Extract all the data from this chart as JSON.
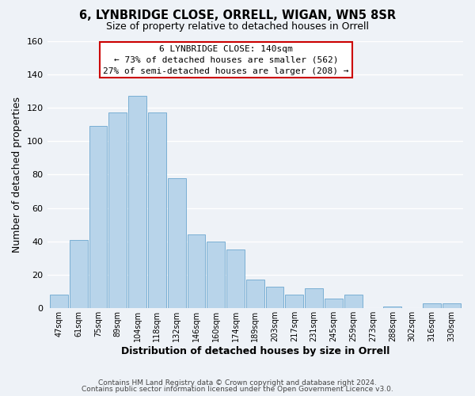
{
  "title": "6, LYNBRIDGE CLOSE, ORRELL, WIGAN, WN5 8SR",
  "subtitle": "Size of property relative to detached houses in Orrell",
  "xlabel": "Distribution of detached houses by size in Orrell",
  "ylabel": "Number of detached properties",
  "bar_labels": [
    "47sqm",
    "61sqm",
    "75sqm",
    "89sqm",
    "104sqm",
    "118sqm",
    "132sqm",
    "146sqm",
    "160sqm",
    "174sqm",
    "189sqm",
    "203sqm",
    "217sqm",
    "231sqm",
    "245sqm",
    "259sqm",
    "273sqm",
    "288sqm",
    "302sqm",
    "316sqm",
    "330sqm"
  ],
  "bar_values": [
    8,
    41,
    109,
    117,
    127,
    117,
    78,
    44,
    40,
    35,
    17,
    13,
    8,
    12,
    6,
    8,
    0,
    1,
    0,
    3,
    3
  ],
  "bar_color": "#b8d4ea",
  "bar_edge_color": "#7aafd4",
  "ylim": [
    0,
    160
  ],
  "yticks": [
    0,
    20,
    40,
    60,
    80,
    100,
    120,
    140,
    160
  ],
  "annotation_title": "6 LYNBRIDGE CLOSE: 140sqm",
  "annotation_line1": "← 73% of detached houses are smaller (562)",
  "annotation_line2": "27% of semi-detached houses are larger (208) →",
  "annotation_box_facecolor": "#ffffff",
  "annotation_box_edgecolor": "#cc0000",
  "footer1": "Contains HM Land Registry data © Crown copyright and database right 2024.",
  "footer2": "Contains public sector information licensed under the Open Government Licence v3.0.",
  "background_color": "#eef2f7",
  "grid_color": "#ffffff"
}
